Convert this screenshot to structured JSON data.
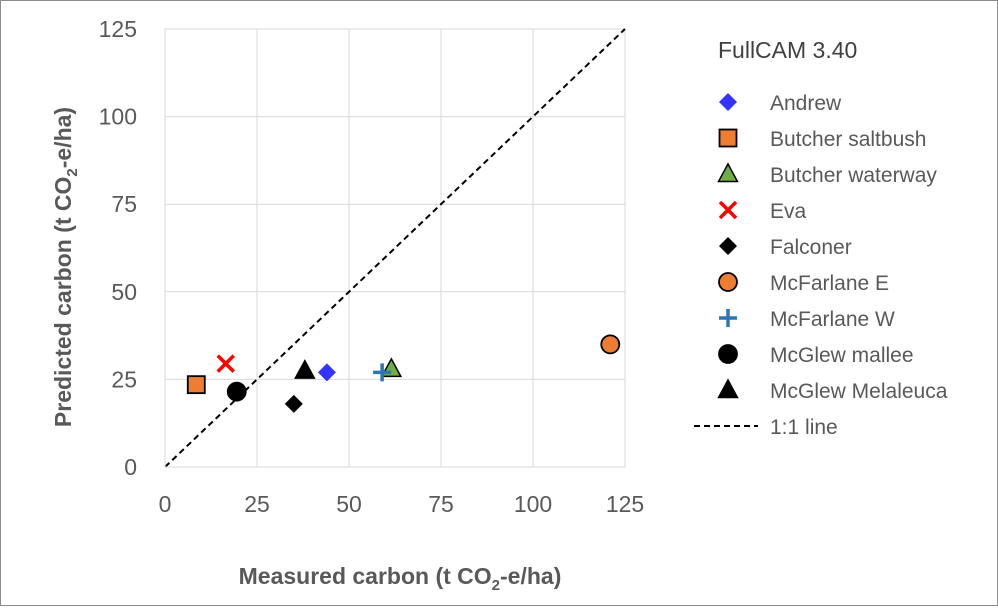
{
  "chart_data": {
    "type": "scatter",
    "title": "",
    "legend_title": "FullCAM 3.40",
    "legend_placement": "right",
    "xlabel": {
      "main": "Measured carbon (t CO",
      "sub": "2",
      "tail": "-e/ha)"
    },
    "ylabel": {
      "main": "Predicted carbon (t CO",
      "sub": "2",
      "tail": "-e/ha)"
    },
    "xlim": [
      0,
      125
    ],
    "ylim": [
      0,
      125
    ],
    "xticks": [
      "0",
      "25",
      "50",
      "75",
      "100",
      "125"
    ],
    "yticks": [
      "0",
      "25",
      "50",
      "75",
      "100",
      "125"
    ],
    "grid": true,
    "series": [
      {
        "name": "Andrew",
        "marker": "diamond",
        "color": "#3333FF",
        "stroke": "none",
        "x": [
          44
        ],
        "y": [
          27
        ]
      },
      {
        "name": "Butcher saltbush",
        "marker": "square",
        "color": "#ED7D31",
        "stroke": "#000000",
        "x": [
          8.5
        ],
        "y": [
          23.5
        ]
      },
      {
        "name": "Butcher waterway",
        "marker": "triangle",
        "color": "#70AD47",
        "stroke": "#000000",
        "x": [
          61.5
        ],
        "y": [
          28
        ]
      },
      {
        "name": "Eva",
        "marker": "x",
        "color": "#FF0000",
        "stroke": "#FF0000",
        "x": [
          16.5
        ],
        "y": [
          29.5
        ]
      },
      {
        "name": "Falconer",
        "marker": "diamond",
        "color": "#000000",
        "stroke": "none",
        "x": [
          35
        ],
        "y": [
          18
        ]
      },
      {
        "name": "McFarlane E",
        "marker": "circle",
        "color": "#ED7D31",
        "stroke": "#000000",
        "x": [
          121
        ],
        "y": [
          35
        ]
      },
      {
        "name": "McFarlane W",
        "marker": "plus",
        "color": "#2E75B6",
        "stroke": "#2E75B6",
        "x": [
          59
        ],
        "y": [
          27
        ]
      },
      {
        "name": "McGlew mallee",
        "marker": "circle",
        "color": "#000000",
        "stroke": "#000000",
        "x": [
          19.5
        ],
        "y": [
          21.5
        ]
      },
      {
        "name": "McGlew Melaleuca",
        "marker": "triangle",
        "color": "#000000",
        "stroke": "#000000",
        "x": [
          38
        ],
        "y": [
          27.5
        ]
      }
    ],
    "reference_line": {
      "name": "1:1 line",
      "style": "dashed",
      "color": "#000000",
      "x": [
        0,
        125
      ],
      "y": [
        0,
        125
      ]
    }
  }
}
